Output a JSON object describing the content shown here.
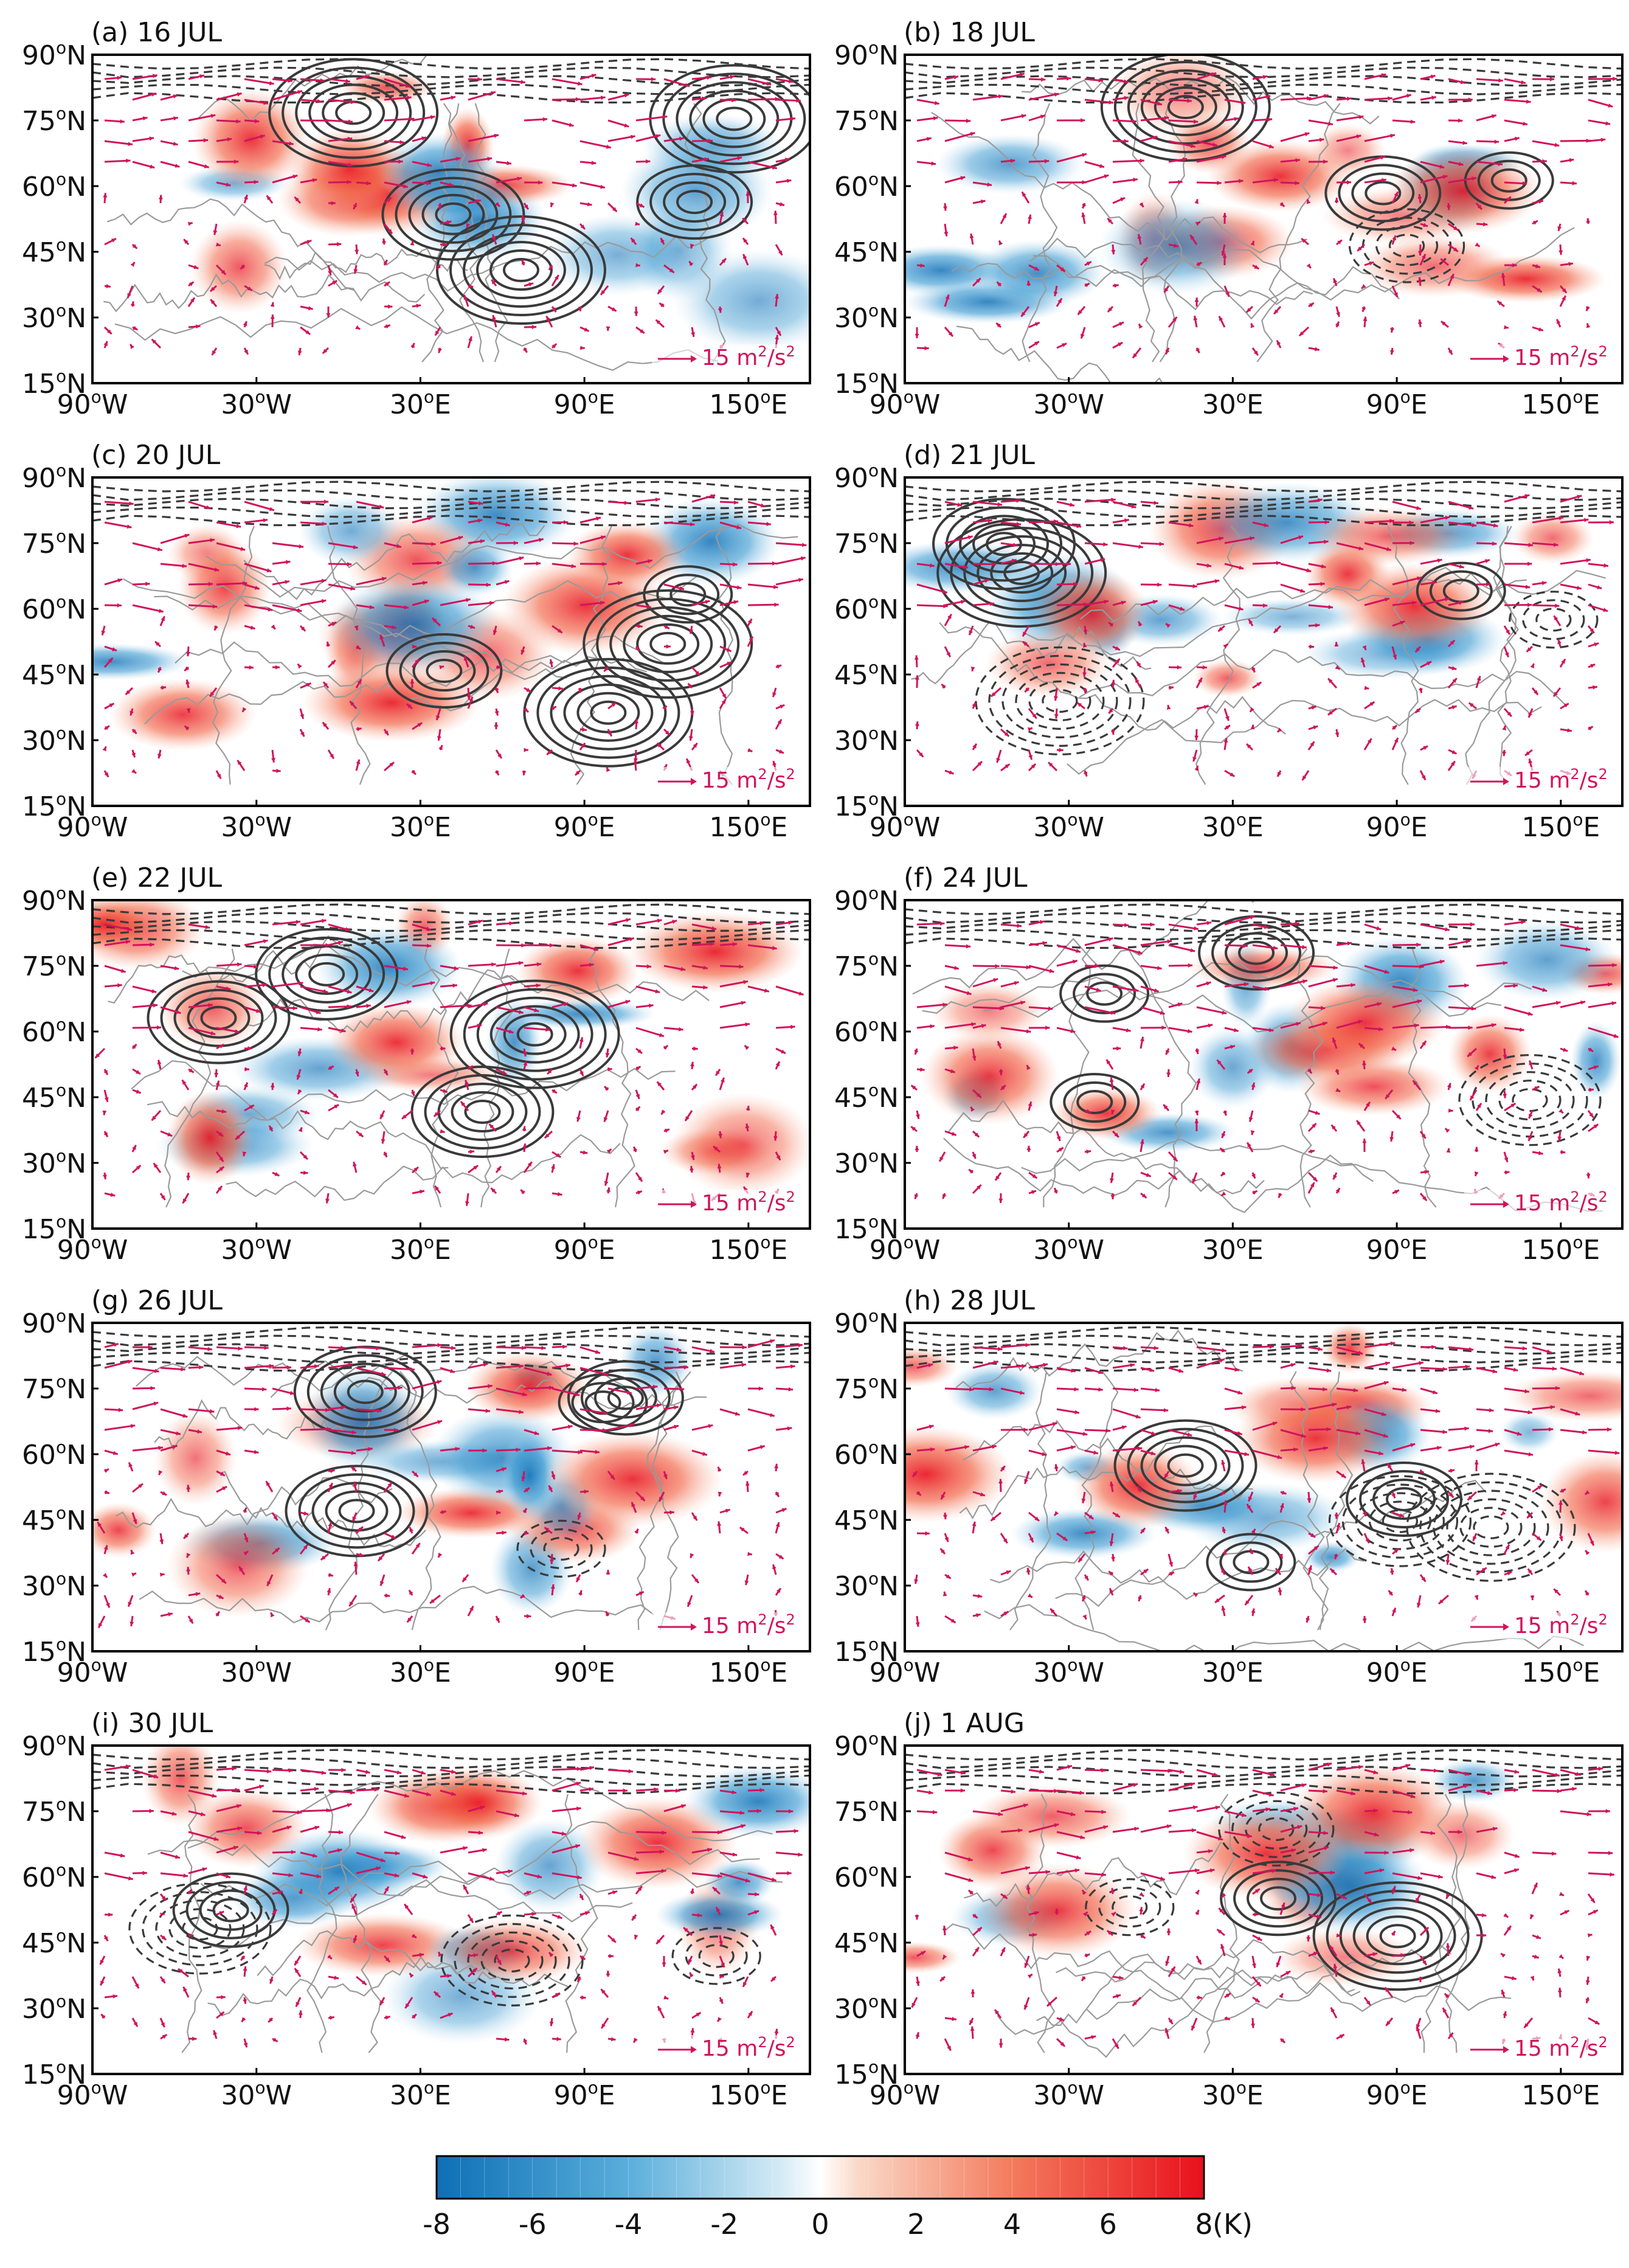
{
  "figure": {
    "panels": [
      {
        "label": "(a) 16 JUL"
      },
      {
        "label": "(b) 18 JUL"
      },
      {
        "label": "(c) 20 JUL"
      },
      {
        "label": "(d) 21 JUL"
      },
      {
        "label": "(e) 22 JUL"
      },
      {
        "label": "(f) 24 JUL"
      },
      {
        "label": "(g) 26 JUL"
      },
      {
        "label": "(h) 28 JUL"
      },
      {
        "label": "(i) 30 JUL"
      },
      {
        "label": "(j) 1 AUG"
      }
    ],
    "lat_ticks": [
      {
        "num": "90",
        "hemi": "N"
      },
      {
        "num": "75",
        "hemi": "N"
      },
      {
        "num": "60",
        "hemi": "N"
      },
      {
        "num": "45",
        "hemi": "N"
      },
      {
        "num": "30",
        "hemi": "N"
      },
      {
        "num": "15",
        "hemi": "N"
      }
    ],
    "lon_ticks": [
      {
        "num": "90",
        "hemi": "W"
      },
      {
        "num": "30",
        "hemi": "W"
      },
      {
        "num": "30",
        "hemi": "E"
      },
      {
        "num": "90",
        "hemi": "E"
      },
      {
        "num": "150",
        "hemi": "E"
      }
    ],
    "degree_symbol": "o",
    "vector_scale": {
      "text": "15 m",
      "sup": "2",
      "tail": "/s",
      "sup2": "2"
    },
    "colorbar": {
      "ticks": [
        "-8",
        "-6",
        "-4",
        "-2",
        "0",
        "2",
        "4",
        "6",
        "8"
      ],
      "unit": "(K)",
      "range": [
        -8,
        8
      ],
      "negative_color": "#1f83c4",
      "neutral_color": "#ffffff",
      "positive_color": "#e8101c"
    },
    "colors": {
      "vector": "#d0155a",
      "contour": "#3a3a3a",
      "coastline": "#9a9a9a",
      "warm_anomaly": "#f07050",
      "cold_anomaly": "#2a8fca"
    }
  }
}
